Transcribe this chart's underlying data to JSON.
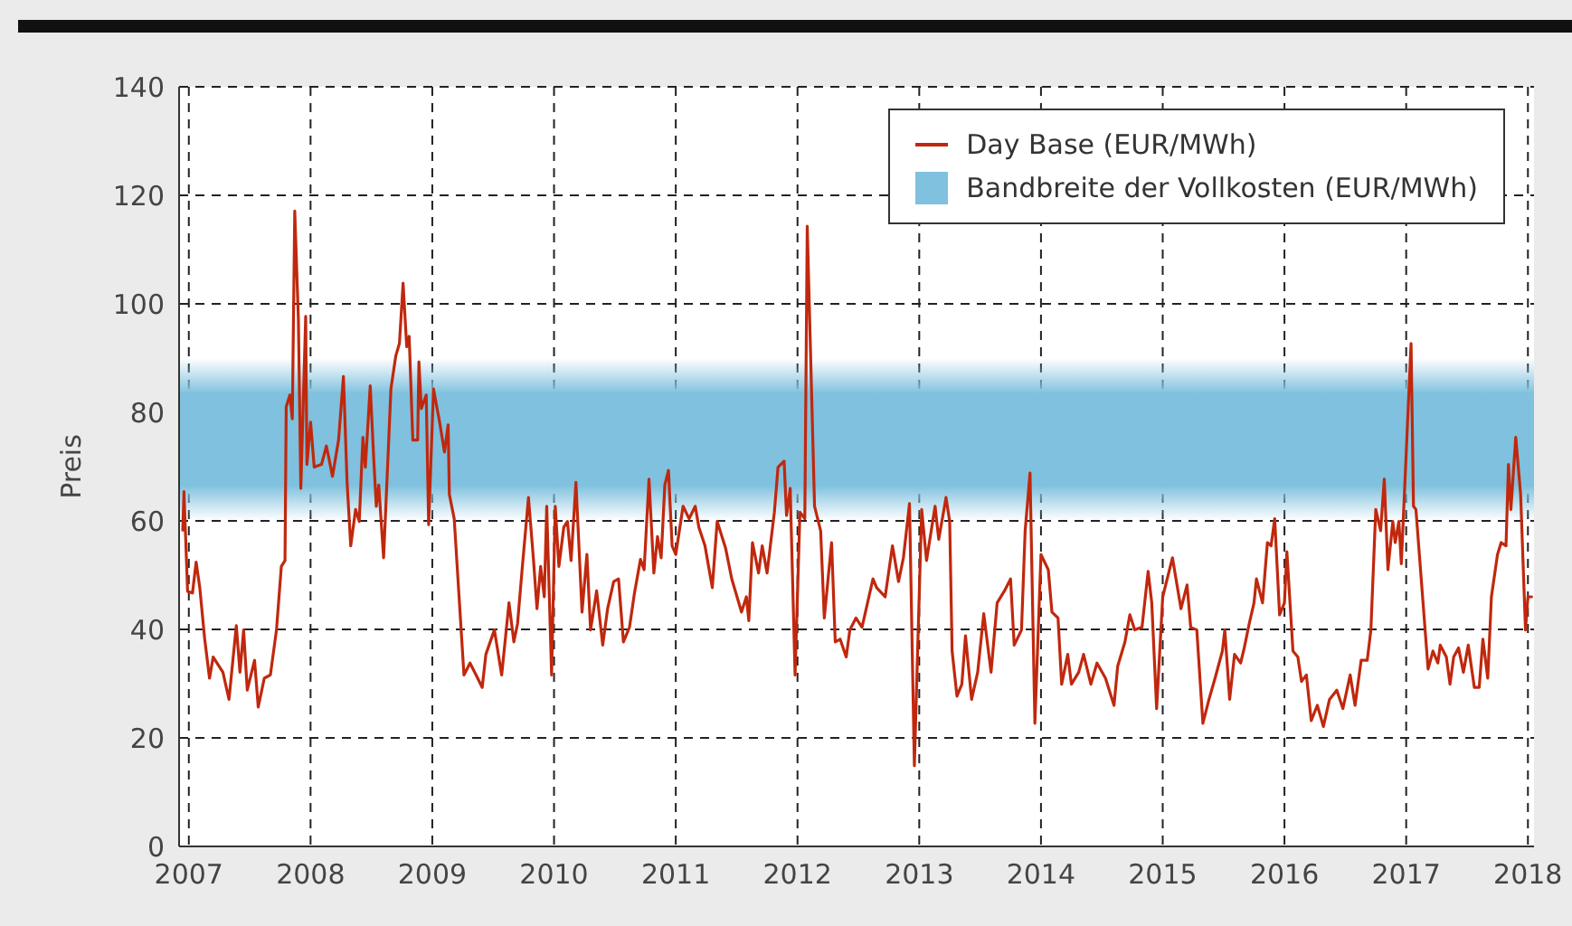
{
  "chart_data": {
    "type": "line",
    "ylabel": "Preis",
    "xlim": [
      2006.92,
      2018.05
    ],
    "xticks": [
      2007,
      2008,
      2009,
      2010,
      2011,
      2012,
      2013,
      2014,
      2015,
      2016,
      2017,
      2018
    ],
    "ylim": [
      0,
      140
    ],
    "yticks": [
      0,
      20,
      40,
      60,
      80,
      100,
      120,
      140
    ],
    "grid": true,
    "legend": "top right",
    "line_style": "solid",
    "bands": [
      {
        "axis": "y",
        "from": 60,
        "to": 90,
        "label": "Bandbreite der Vollkosten (EUR/MWh)",
        "color": "#7fc1de"
      }
    ],
    "series": [
      {
        "name": "Day Base (EUR/MWh)",
        "color": "#c0280e",
        "x": [
          2006.95,
          2006.96,
          2006.99,
          2007.03,
          2007.06,
          2007.09,
          2007.13,
          2007.17,
          2007.2,
          2007.28,
          2007.33,
          2007.39,
          2007.42,
          2007.45,
          2007.48,
          2007.54,
          2007.57,
          2007.62,
          2007.67,
          2007.72,
          2007.76,
          2007.79,
          2007.8,
          2007.83,
          2007.85,
          2007.87,
          2007.9,
          2007.92,
          2007.96,
          2007.97,
          2008.0,
          2008.03,
          2008.09,
          2008.13,
          2008.15,
          2008.18,
          2008.23,
          2008.27,
          2008.3,
          2008.33,
          2008.37,
          2008.4,
          2008.43,
          2008.45,
          2008.49,
          2008.52,
          2008.54,
          2008.56,
          2008.6,
          2008.64,
          2008.66,
          2008.7,
          2008.73,
          2008.76,
          2008.79,
          2008.81,
          2008.84,
          2008.88,
          2008.89,
          2008.91,
          2008.95,
          2008.97,
          2009.01,
          2009.06,
          2009.1,
          2009.13,
          2009.14,
          2009.18,
          2009.26,
          2009.31,
          2009.36,
          2009.41,
          2009.44,
          2009.51,
          2009.57,
          2009.63,
          2009.67,
          2009.7,
          2009.74,
          2009.79,
          2009.83,
          2009.86,
          2009.89,
          2009.92,
          2009.94,
          2009.98,
          2010.01,
          2010.04,
          2010.08,
          2010.11,
          2010.14,
          2010.18,
          2010.23,
          2010.27,
          2010.3,
          2010.35,
          2010.4,
          2010.44,
          2010.49,
          2010.53,
          2010.57,
          2010.62,
          2010.66,
          2010.71,
          2010.74,
          2010.78,
          2010.82,
          2010.85,
          2010.88,
          2010.91,
          2010.94,
          2010.97,
          2011.0,
          2011.06,
          2011.11,
          2011.16,
          2011.19,
          2011.24,
          2011.3,
          2011.34,
          2011.41,
          2011.46,
          2011.54,
          2011.58,
          2011.6,
          2011.63,
          2011.68,
          2011.71,
          2011.75,
          2011.81,
          2011.84,
          2011.89,
          2011.91,
          2011.94,
          2011.98,
          2012.02,
          2012.06,
          2012.08,
          2012.14,
          2012.19,
          2012.22,
          2012.28,
          2012.31,
          2012.35,
          2012.4,
          2012.43,
          2012.48,
          2012.53,
          2012.62,
          2012.65,
          2012.72,
          2012.78,
          2012.83,
          2012.87,
          2012.92,
          2012.96,
          2013.02,
          2013.06,
          2013.13,
          2013.16,
          2013.22,
          2013.25,
          2013.27,
          2013.31,
          2013.35,
          2013.38,
          2013.43,
          2013.48,
          2013.53,
          2013.59,
          2013.64,
          2013.7,
          2013.75,
          2013.78,
          2013.84,
          2013.87,
          2013.91,
          2013.95,
          2014.0,
          2014.06,
          2014.09,
          2014.14,
          2014.17,
          2014.22,
          2014.25,
          2014.31,
          2014.35,
          2014.41,
          2014.46,
          2014.53,
          2014.6,
          2014.63,
          2014.69,
          2014.73,
          2014.77,
          2014.83,
          2014.88,
          2014.91,
          2014.95,
          2015.0,
          2015.08,
          2015.15,
          2015.2,
          2015.23,
          2015.28,
          2015.33,
          2015.38,
          2015.43,
          2015.49,
          2015.51,
          2015.55,
          2015.59,
          2015.64,
          2015.67,
          2015.71,
          2015.75,
          2015.77,
          2015.82,
          2015.86,
          2015.89,
          2015.92,
          2015.96,
          2016.0,
          2016.02,
          2016.07,
          2016.11,
          2016.14,
          2016.18,
          2016.22,
          2016.27,
          2016.32,
          2016.37,
          2016.43,
          2016.48,
          2016.54,
          2016.58,
          2016.63,
          2016.68,
          2016.71,
          2016.75,
          2016.79,
          2016.82,
          2016.85,
          2016.89,
          2016.91,
          2016.94,
          2016.96,
          2017.04,
          2017.06,
          2017.08,
          2017.18,
          2017.22,
          2017.26,
          2017.28,
          2017.33,
          2017.36,
          2017.39,
          2017.43,
          2017.47,
          2017.51,
          2017.56,
          2017.6,
          2017.63,
          2017.67,
          2017.7,
          2017.75,
          2017.78,
          2017.82,
          2017.84,
          2017.86,
          2017.9,
          2017.94,
          2017.98,
          2018.0,
          2018.03
        ],
        "values": [
          58.3,
          65.4,
          47,
          46.7,
          52.4,
          47.7,
          38.3,
          31,
          34.9,
          32.1,
          27.1,
          40.7,
          32.1,
          39.9,
          28.8,
          34.3,
          25.7,
          31,
          31.6,
          39.9,
          51.6,
          52.7,
          81,
          83.2,
          78.8,
          117.1,
          97.1,
          66,
          97.7,
          70.4,
          78.2,
          69.9,
          70.4,
          73.8,
          71.6,
          68.2,
          74.9,
          86.6,
          67.1,
          55.4,
          62.1,
          59.9,
          75.4,
          69.9,
          84.9,
          71,
          62.7,
          66.6,
          53.2,
          73.8,
          84.3,
          90.4,
          92.7,
          103.8,
          92.1,
          94,
          74.9,
          74.9,
          89.3,
          80.7,
          83.2,
          59.3,
          84.3,
          78.2,
          72.7,
          77.7,
          64.9,
          60.4,
          31.6,
          33.8,
          31.6,
          29.3,
          35.4,
          39.9,
          31.6,
          44.9,
          37.7,
          41,
          51.6,
          64.3,
          53.2,
          43.8,
          51.6,
          46,
          62.7,
          31.6,
          62.7,
          51.6,
          58.8,
          59.9,
          52.7,
          67.1,
          43.2,
          53.8,
          39.9,
          47.1,
          37.1,
          43.8,
          48.8,
          49.3,
          37.7,
          40.4,
          46.6,
          52.9,
          51,
          67.7,
          50.4,
          57.1,
          53.2,
          66.6,
          69.3,
          55.4,
          53.8,
          62.7,
          60.4,
          62.7,
          58.8,
          55.4,
          47.7,
          59.9,
          54.9,
          49.3,
          43.2,
          46,
          41.6,
          56,
          50.4,
          55.4,
          50.4,
          61.6,
          69.9,
          71,
          61,
          66,
          31.6,
          61.6,
          60.4,
          114.3,
          62.7,
          58.2,
          42.1,
          56,
          37.7,
          38.2,
          34.9,
          39.9,
          42.1,
          40.4,
          49.3,
          47.7,
          46,
          55.4,
          48.8,
          53.2,
          63.2,
          14.9,
          62.1,
          52.7,
          62.7,
          56.6,
          64.3,
          59.9,
          36,
          27.7,
          29.9,
          38.8,
          27.1,
          32.1,
          42.9,
          32.1,
          44.9,
          47.1,
          49.3,
          37.1,
          39.9,
          58.2,
          68.8,
          22.7,
          53.8,
          51,
          43.2,
          42.1,
          29.9,
          35.4,
          29.9,
          32.1,
          35.4,
          29.9,
          33.8,
          31,
          26,
          33.2,
          37.7,
          42.7,
          39.9,
          40.4,
          50.7,
          44.9,
          25.4,
          46,
          53.2,
          43.8,
          48.2,
          40.4,
          39.9,
          22.7,
          27.1,
          31,
          36,
          39.9,
          27.1,
          35.4,
          33.8,
          36.6,
          41,
          44.9,
          49.3,
          44.9,
          56,
          55.4,
          60.4,
          42.7,
          44.9,
          54.3,
          36,
          34.9,
          30.4,
          31.6,
          23.2,
          26,
          22.1,
          27.1,
          28.8,
          25.4,
          31.6,
          26,
          34.3,
          34.3,
          39.9,
          62.1,
          58.2,
          67.7,
          51,
          59.9,
          56,
          59.9,
          52.1,
          92.7,
          62.7,
          62.1,
          32.7,
          36,
          33.8,
          37.1,
          34.9,
          29.9,
          34.9,
          36.6,
          32.1,
          37.1,
          29.3,
          29.3,
          38.2,
          31,
          46,
          53.8,
          56,
          55.4,
          70.4,
          62.1,
          75.4,
          64.9,
          39.9,
          46,
          46
        ]
      }
    ]
  }
}
